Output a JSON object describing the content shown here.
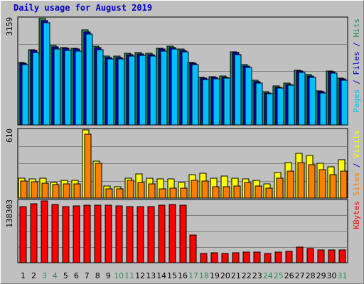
{
  "chart_data": {
    "type": "bar",
    "title": "Daily usage for August 2019",
    "days": [
      "1",
      "2",
      "3",
      "4",
      "5",
      "6",
      "7",
      "8",
      "9",
      "10",
      "11",
      "12",
      "13",
      "14",
      "15",
      "16",
      "17",
      "18",
      "19",
      "20",
      "21",
      "22",
      "23",
      "24",
      "25",
      "26",
      "27",
      "28",
      "29",
      "30",
      "31"
    ],
    "weekend_days": [
      "3",
      "4",
      "10",
      "11",
      "17",
      "18",
      "24",
      "25",
      "31"
    ],
    "panels": [
      {
        "name": "pages-files-hits",
        "max_label": "3159",
        "ymax": 3159,
        "right_labels": [
          {
            "text": "Pages",
            "color": "#00bfff"
          },
          {
            "text": " / ",
            "color": "#0000c8"
          },
          {
            "text": "Files",
            "color": "#0000c8"
          },
          {
            "text": " / ",
            "color": "#0000c8"
          },
          {
            "text": "Hits",
            "color": "#2e8b57"
          }
        ],
        "series": [
          {
            "name": "Hits",
            "color": "#2e8b57",
            "values": [
              1860,
              2240,
              3159,
              2350,
              2300,
              2280,
              2820,
              2330,
              2040,
              2040,
              2120,
              2140,
              2120,
              2280,
              2330,
              2250,
              1860,
              1410,
              1440,
              1450,
              2170,
              1780,
              1320,
              980,
              1150,
              1240,
              1630,
              1490,
              1010,
              1610,
              1400
            ]
          },
          {
            "name": "Files",
            "color": "#0000c8",
            "values": [
              1830,
              2210,
              3100,
              2310,
              2270,
              2250,
              2760,
              2300,
              2010,
              2010,
              2090,
              2110,
              2090,
              2250,
              2300,
              2220,
              1830,
              1380,
              1410,
              1420,
              2140,
              1750,
              1290,
              950,
              1120,
              1210,
              1600,
              1460,
              980,
              1580,
              1370
            ]
          },
          {
            "name": "Pages",
            "color": "#00bfff",
            "values": [
              1780,
              2150,
              3030,
              2260,
              2220,
              2200,
              2690,
              2240,
              1960,
              1960,
              2040,
              2060,
              2040,
              2200,
              2250,
              2170,
              1780,
              1340,
              1370,
              1380,
              2080,
              1700,
              1250,
              920,
              1090,
              1180,
              1550,
              1420,
              950,
              1540,
              1330
            ]
          }
        ]
      },
      {
        "name": "visits-sites",
        "max_label": "610",
        "ymax": 610,
        "right_labels": [
          {
            "text": "Sites",
            "color": "#ff8000"
          },
          {
            "text": " / ",
            "color": "#0000c8"
          },
          {
            "text": "Visits",
            "color": "#ffff00"
          }
        ],
        "series": [
          {
            "name": "Visits",
            "color": "#ffff00",
            "values": [
              180,
              170,
              180,
              140,
              160,
              160,
              610,
              330,
              105,
              100,
              180,
              215,
              180,
              170,
              170,
              140,
              210,
              220,
              180,
              200,
              180,
              170,
              160,
              125,
              230,
              320,
              400,
              380,
              310,
              280,
              340
            ]
          },
          {
            "name": "Sites",
            "color": "#ff8000",
            "values": [
              155,
              145,
              135,
              120,
              125,
              130,
              570,
              310,
              85,
              85,
              160,
              140,
              130,
              85,
              90,
              90,
              160,
              150,
              100,
              100,
              110,
              140,
              110,
              90,
              175,
              240,
              315,
              300,
              255,
              210,
              240
            ]
          }
        ]
      },
      {
        "name": "kbytes",
        "max_label": "138303",
        "ymax": 138303,
        "right_labels": [
          {
            "text": "KBytes",
            "color": "#ff0000"
          }
        ],
        "series": [
          {
            "name": "KBytes",
            "color": "#ff0000",
            "values": [
              125000,
              132000,
              138303,
              131000,
              126000,
              127000,
              128000,
              129000,
              128000,
              127000,
              125000,
              126000,
              126000,
              128000,
              131000,
              128000,
              62000,
              20000,
              22000,
              20000,
              23000,
              24000,
              24000,
              21000,
              24000,
              26000,
              35000,
              32000,
              29000,
              28000,
              29000
            ]
          }
        ]
      }
    ]
  }
}
